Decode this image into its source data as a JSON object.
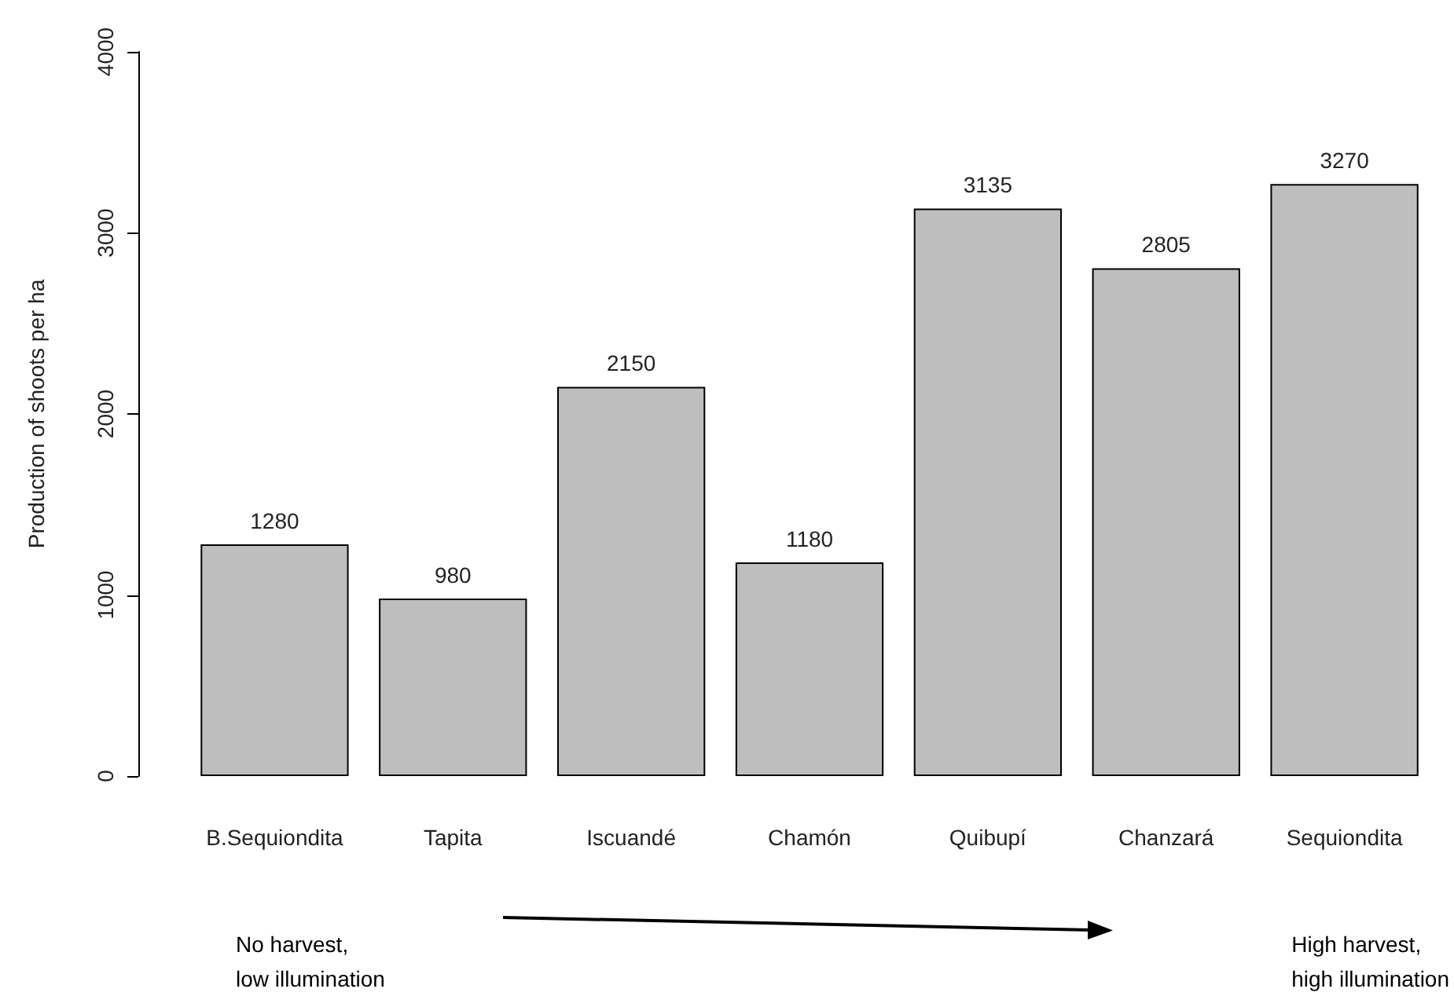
{
  "chart_data": {
    "type": "bar",
    "ylabel": "Production of shoots per ha",
    "categories": [
      "B.Sequiondita",
      "Tapita",
      "Iscuandé",
      "Chamón",
      "Quibupí",
      "Chanzará",
      "Sequiondita"
    ],
    "values": [
      1280,
      980,
      2150,
      1180,
      3135,
      2805,
      3270
    ],
    "color": "#bebebe",
    "ylim": [
      0,
      4000
    ],
    "yticks": [
      0,
      1000,
      2000,
      3000,
      4000
    ],
    "grid": false,
    "data_labels": true,
    "annotations": [
      "No harvest,\nlow illumination",
      "High harvest,\nhigh illumination"
    ]
  }
}
